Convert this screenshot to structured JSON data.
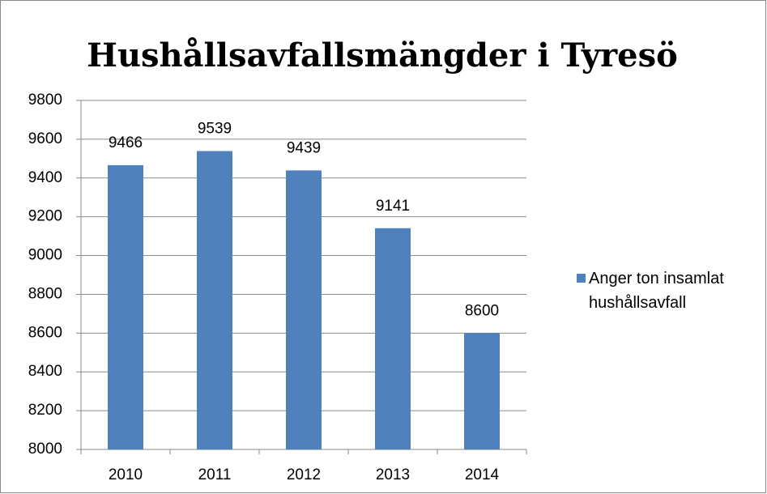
{
  "chart_data": {
    "type": "bar",
    "title": "Hushållsavfallsmängder i Tyresö",
    "categories": [
      "2010",
      "2011",
      "2012",
      "2013",
      "2014"
    ],
    "series": [
      {
        "name": "Anger ton insamlat hushållsavfall",
        "color": "#4f81bd",
        "values": [
          9466,
          9539,
          9439,
          9141,
          8600
        ]
      }
    ],
    "ylim": [
      8000,
      9800
    ],
    "yticks": [
      8000,
      8200,
      8400,
      8600,
      8800,
      9000,
      9200,
      9400,
      9600,
      9800
    ],
    "grid": true,
    "legend": "right"
  }
}
